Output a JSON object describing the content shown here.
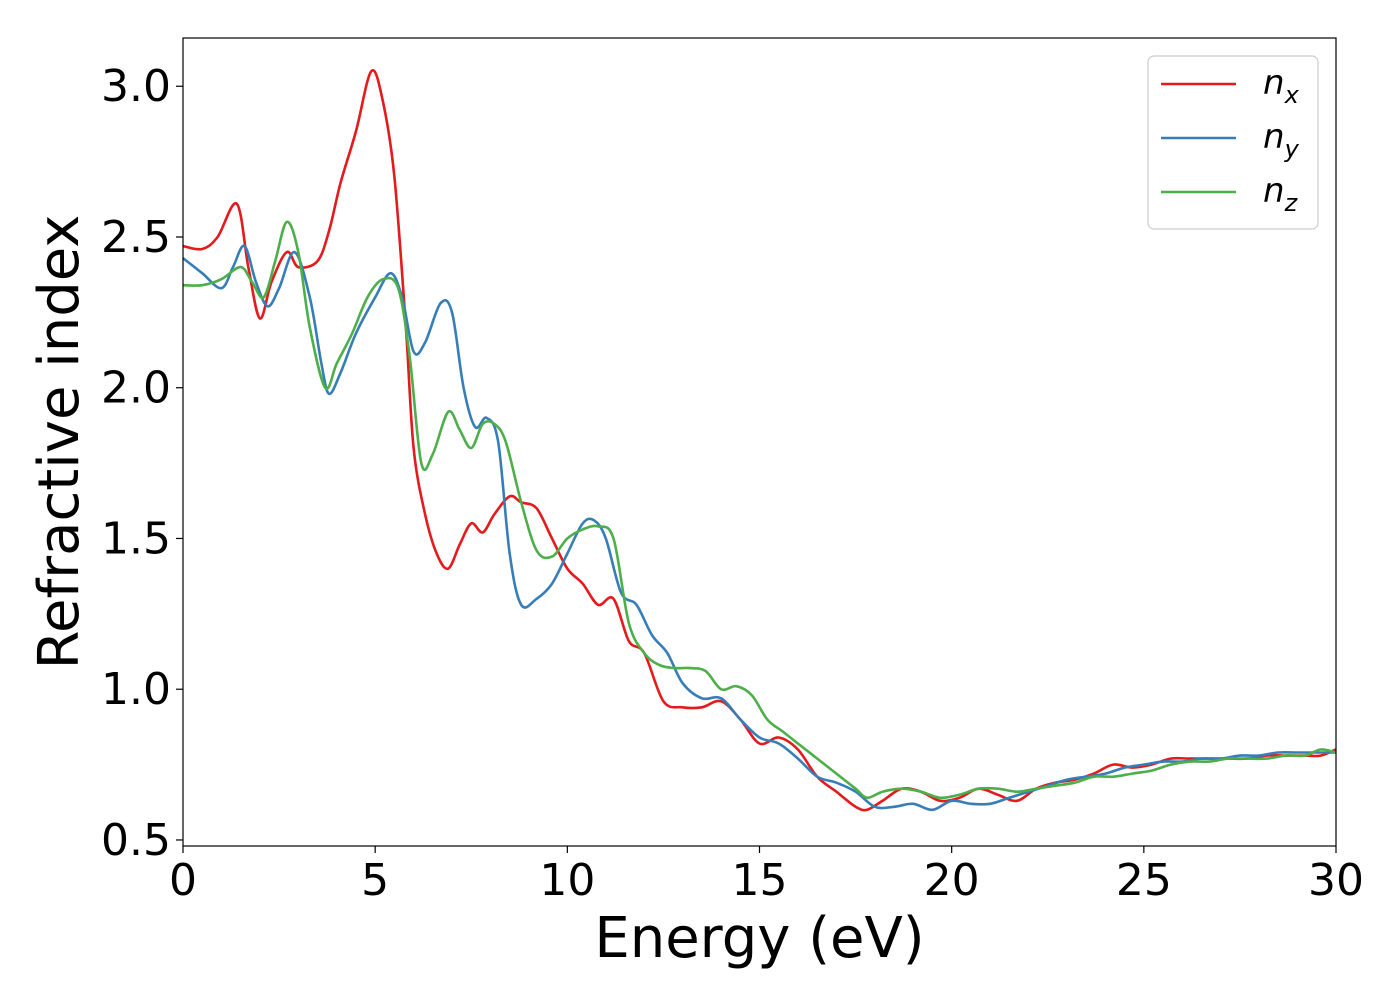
{
  "chart_data": {
    "type": "line",
    "xlabel": "Energy (eV)",
    "ylabel": "Refractive index",
    "xlim": [
      0,
      30
    ],
    "ylim": [
      0.48,
      3.16
    ],
    "xticks": [
      "0",
      "5",
      "10",
      "15",
      "20",
      "25",
      "30"
    ],
    "yticks": [
      "0.5",
      "1.0",
      "1.5",
      "2.0",
      "2.5",
      "3.0"
    ],
    "grid": false,
    "legend_position": "top-right",
    "series": [
      {
        "name": "n",
        "subscript": "x",
        "color": "#e41a1c",
        "x": [
          0,
          0.5,
          0.9,
          1.4,
          1.7,
          2.0,
          2.3,
          2.7,
          3.0,
          3.5,
          3.8,
          4.1,
          4.5,
          4.9,
          5.2,
          5.5,
          5.8,
          6.0,
          6.3,
          6.6,
          6.9,
          7.2,
          7.5,
          7.8,
          8.1,
          8.5,
          8.8,
          9.2,
          9.6,
          10.0,
          10.4,
          10.8,
          11.2,
          11.6,
          12.0,
          12.5,
          13.0,
          13.5,
          14.0,
          14.5,
          15.0,
          15.5,
          16.0,
          16.5,
          17.0,
          17.5,
          17.8,
          18.2,
          18.7,
          19.2,
          19.7,
          20.2,
          20.7,
          21.2,
          21.7,
          22.2,
          22.7,
          23.2,
          23.7,
          24.2,
          24.7,
          25.2,
          25.7,
          26.2,
          26.7,
          27.2,
          27.7,
          28.2,
          28.7,
          29.2,
          29.6,
          30.0
        ],
        "y": [
          2.47,
          2.46,
          2.5,
          2.61,
          2.4,
          2.23,
          2.35,
          2.45,
          2.4,
          2.42,
          2.52,
          2.68,
          2.85,
          3.05,
          2.95,
          2.7,
          2.2,
          1.8,
          1.58,
          1.45,
          1.4,
          1.48,
          1.55,
          1.52,
          1.58,
          1.64,
          1.62,
          1.6,
          1.5,
          1.4,
          1.35,
          1.28,
          1.3,
          1.16,
          1.12,
          0.96,
          0.94,
          0.94,
          0.96,
          0.9,
          0.82,
          0.84,
          0.8,
          0.71,
          0.66,
          0.61,
          0.6,
          0.63,
          0.67,
          0.66,
          0.63,
          0.64,
          0.67,
          0.65,
          0.63,
          0.67,
          0.69,
          0.7,
          0.72,
          0.75,
          0.74,
          0.75,
          0.77,
          0.77,
          0.77,
          0.77,
          0.77,
          0.78,
          0.78,
          0.78,
          0.78,
          0.8
        ]
      },
      {
        "name": "n",
        "subscript": "y",
        "color": "#377eb8",
        "x": [
          0,
          0.5,
          1.0,
          1.3,
          1.6,
          1.9,
          2.2,
          2.5,
          2.9,
          3.3,
          3.6,
          3.8,
          4.1,
          4.5,
          5.0,
          5.4,
          5.7,
          6.0,
          6.3,
          6.7,
          7.0,
          7.3,
          7.6,
          7.9,
          8.2,
          8.5,
          8.8,
          9.2,
          9.6,
          10.0,
          10.4,
          10.7,
          11.0,
          11.4,
          11.8,
          12.2,
          12.6,
          13.0,
          13.5,
          14.0,
          14.5,
          15.0,
          15.5,
          16.0,
          16.5,
          17.0,
          17.5,
          18.0,
          18.5,
          19.0,
          19.5,
          20.0,
          20.5,
          21.0,
          21.5,
          22.0,
          22.5,
          23.0,
          23.5,
          24.0,
          24.5,
          25.0,
          25.5,
          26.0,
          26.5,
          27.0,
          27.5,
          28.0,
          28.5,
          29.0,
          29.5,
          30.0
        ],
        "y": [
          2.43,
          2.38,
          2.33,
          2.4,
          2.47,
          2.35,
          2.27,
          2.33,
          2.45,
          2.3,
          2.08,
          1.98,
          2.05,
          2.18,
          2.3,
          2.38,
          2.3,
          2.12,
          2.15,
          2.28,
          2.25,
          2.0,
          1.87,
          1.9,
          1.82,
          1.45,
          1.28,
          1.3,
          1.35,
          1.45,
          1.55,
          1.56,
          1.5,
          1.32,
          1.28,
          1.18,
          1.12,
          1.02,
          0.97,
          0.97,
          0.9,
          0.84,
          0.82,
          0.77,
          0.71,
          0.69,
          0.66,
          0.61,
          0.61,
          0.62,
          0.6,
          0.63,
          0.62,
          0.62,
          0.64,
          0.66,
          0.68,
          0.7,
          0.71,
          0.72,
          0.74,
          0.75,
          0.76,
          0.76,
          0.77,
          0.77,
          0.78,
          0.78,
          0.79,
          0.79,
          0.79,
          0.79
        ]
      },
      {
        "name": "n",
        "subscript": "z",
        "color": "#4daf4a",
        "x": [
          0,
          0.5,
          1.0,
          1.5,
          1.8,
          2.1,
          2.4,
          2.7,
          3.0,
          3.3,
          3.7,
          4.0,
          4.4,
          4.8,
          5.2,
          5.6,
          5.9,
          6.2,
          6.5,
          6.9,
          7.2,
          7.5,
          7.8,
          8.1,
          8.4,
          8.8,
          9.2,
          9.6,
          10.0,
          10.4,
          10.8,
          11.2,
          11.6,
          12.0,
          12.4,
          12.8,
          13.2,
          13.6,
          14.0,
          14.4,
          14.8,
          15.2,
          15.6,
          16.0,
          16.5,
          17.0,
          17.5,
          17.8,
          18.2,
          18.7,
          19.2,
          19.7,
          20.2,
          20.7,
          21.2,
          21.7,
          22.2,
          22.7,
          23.2,
          23.7,
          24.2,
          24.7,
          25.2,
          25.7,
          26.2,
          26.7,
          27.2,
          27.7,
          28.2,
          28.7,
          29.2,
          29.6,
          30.0
        ],
        "y": [
          2.34,
          2.34,
          2.36,
          2.4,
          2.35,
          2.3,
          2.42,
          2.55,
          2.45,
          2.2,
          2.0,
          2.08,
          2.18,
          2.3,
          2.36,
          2.33,
          2.1,
          1.75,
          1.78,
          1.92,
          1.86,
          1.8,
          1.88,
          1.88,
          1.82,
          1.62,
          1.46,
          1.44,
          1.5,
          1.53,
          1.54,
          1.5,
          1.22,
          1.12,
          1.08,
          1.07,
          1.07,
          1.06,
          1.0,
          1.01,
          0.98,
          0.9,
          0.86,
          0.82,
          0.77,
          0.72,
          0.67,
          0.64,
          0.66,
          0.67,
          0.66,
          0.64,
          0.65,
          0.67,
          0.67,
          0.66,
          0.67,
          0.68,
          0.69,
          0.71,
          0.71,
          0.72,
          0.73,
          0.75,
          0.76,
          0.76,
          0.77,
          0.77,
          0.77,
          0.78,
          0.78,
          0.8,
          0.79
        ]
      }
    ]
  }
}
